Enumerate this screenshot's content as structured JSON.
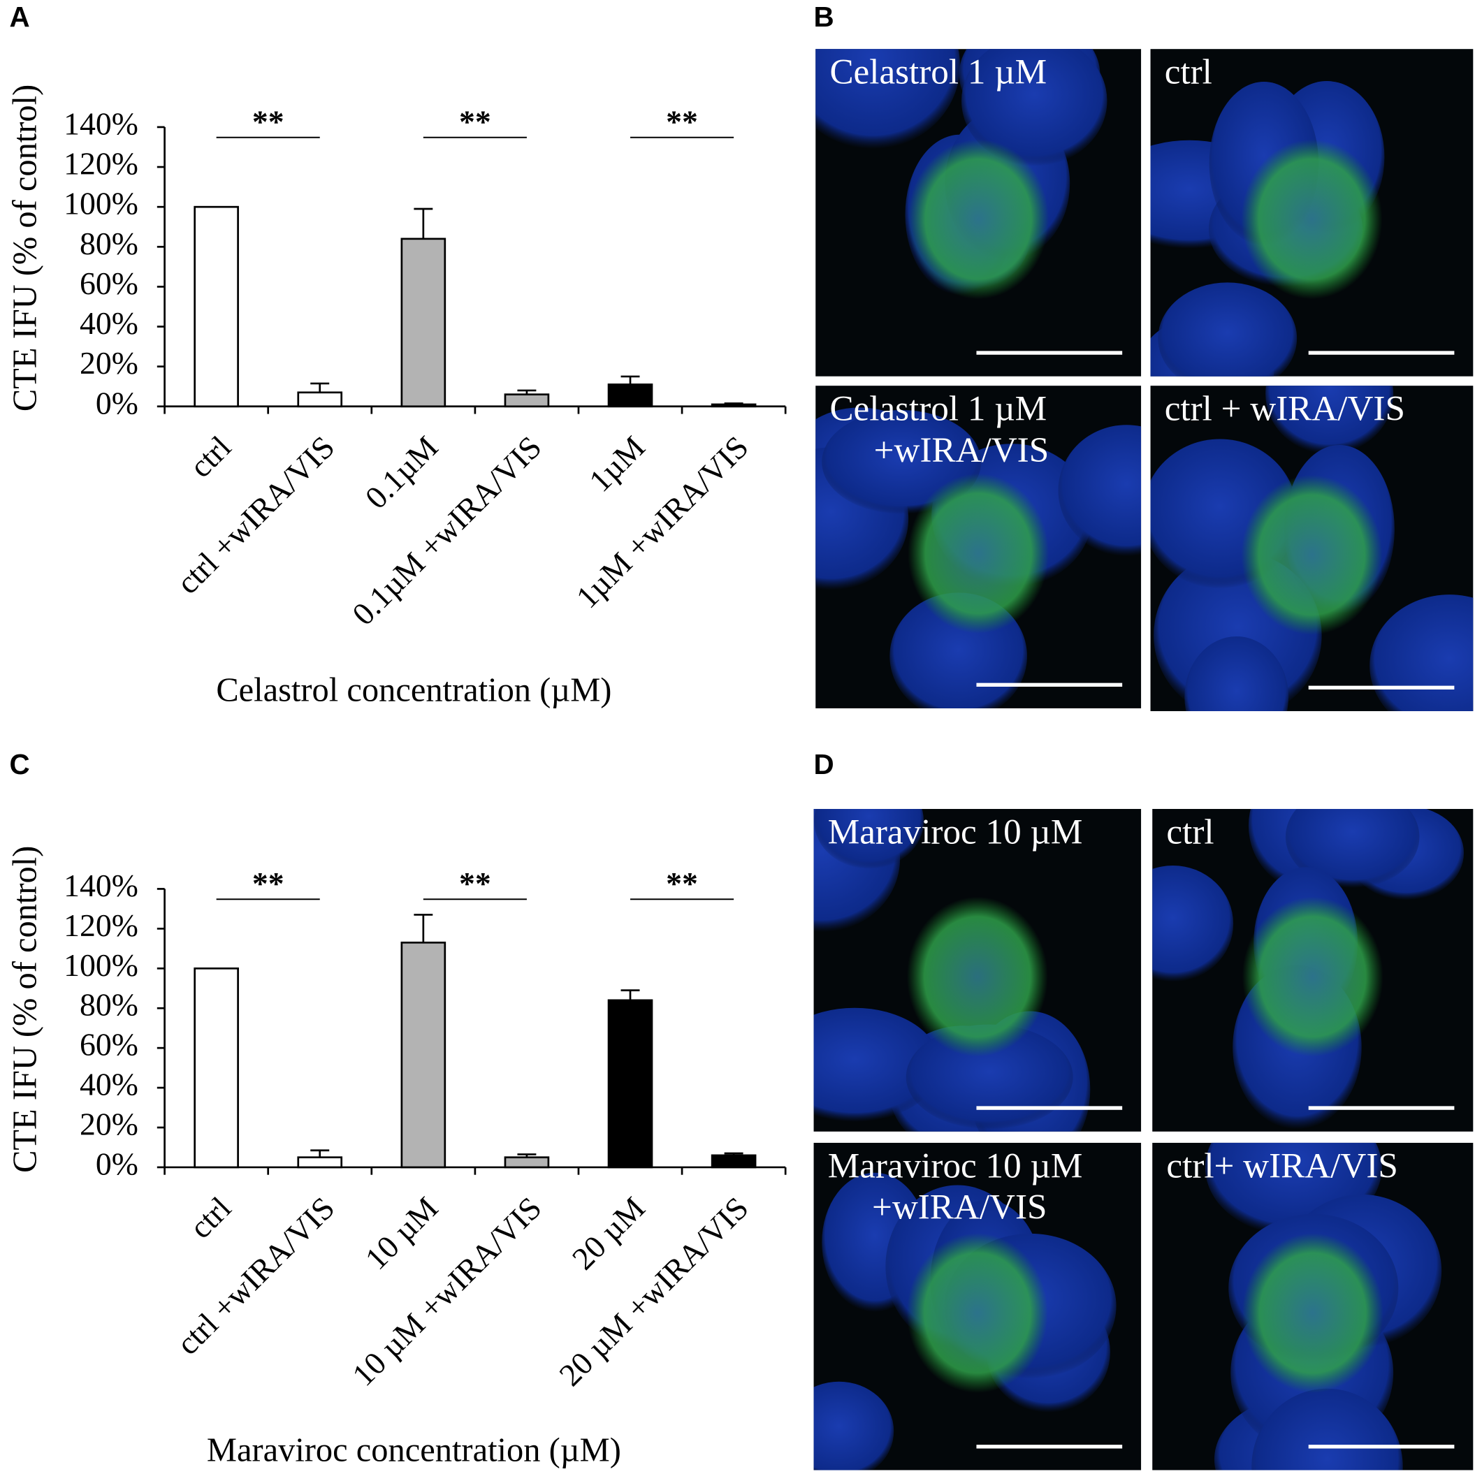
{
  "panel_labels": [
    "A",
    "B",
    "C",
    "D"
  ],
  "chart_data": [
    {
      "type": "bar",
      "y_label": "CTE IFU (% of control)",
      "x_label": "Celastrol concentration (µM)",
      "categories": [
        "ctrl",
        "ctrl +wIRA/VIS",
        "0.1µM",
        "0.1µM +wIRA/VIS",
        "1µM",
        "1µM +wIRA/VIS"
      ],
      "values": [
        100,
        7,
        84,
        6,
        11,
        1
      ],
      "errors": [
        0,
        4.5,
        15,
        2,
        4,
        0.5
      ],
      "colors": [
        "#ffffff",
        "#ffffff",
        "#b3b3b3",
        "#b3b3b3",
        "#000000",
        "#000000"
      ],
      "annotations": [
        "**",
        "**",
        "**"
      ],
      "ylim": [
        0,
        140
      ],
      "yticks": [
        {
          "value": 0,
          "label": "0%"
        },
        {
          "value": 20,
          "label": "20%"
        },
        {
          "value": 40,
          "label": "40%"
        },
        {
          "value": 60,
          "label": "60%"
        },
        {
          "value": 80,
          "label": "80%"
        },
        {
          "value": 100,
          "label": "100%"
        },
        {
          "value": 120,
          "label": "120%"
        },
        {
          "value": 140,
          "label": "140%"
        }
      ],
      "grid": false
    },
    {
      "type": "bar",
      "y_label": "CTE IFU (% of control)",
      "x_label": "Maraviroc concentration (µM)",
      "categories": [
        "ctrl",
        "ctrl +wIRA/VIS",
        "10 µM",
        "10 µM +wIRA/VIS",
        "20 µM",
        "20 µM +wIRA/VIS"
      ],
      "values": [
        100,
        5,
        113,
        5,
        84,
        6
      ],
      "errors": [
        0,
        3.5,
        14,
        1.5,
        5,
        1
      ],
      "colors": [
        "#ffffff",
        "#ffffff",
        "#b3b3b3",
        "#b3b3b3",
        "#000000",
        "#000000"
      ],
      "annotations": [
        "**",
        "**",
        "**"
      ],
      "ylim": [
        0,
        140
      ],
      "yticks": [
        {
          "value": 0,
          "label": "0%"
        },
        {
          "value": 20,
          "label": "20%"
        },
        {
          "value": 40,
          "label": "40%"
        },
        {
          "value": 60,
          "label": "60%"
        },
        {
          "value": 80,
          "label": "80%"
        },
        {
          "value": 100,
          "label": "100%"
        },
        {
          "value": 120,
          "label": "120%"
        },
        {
          "value": 140,
          "label": "140%"
        }
      ],
      "grid": false
    }
  ],
  "micrographs": [
    [
      [
        "Celastrol 1 µM"
      ],
      [
        "ctrl"
      ],
      [
        "Celastrol 1 µM",
        "+wIRA/VIS"
      ],
      [
        "ctrl + wIRA/VIS"
      ]
    ],
    [
      [
        "Maraviroc 10 µM"
      ],
      [
        "ctrl"
      ],
      [
        "Maraviroc 10 µM",
        "+wIRA/VIS"
      ],
      [
        "ctrl+ wIRA/VIS"
      ]
    ]
  ]
}
